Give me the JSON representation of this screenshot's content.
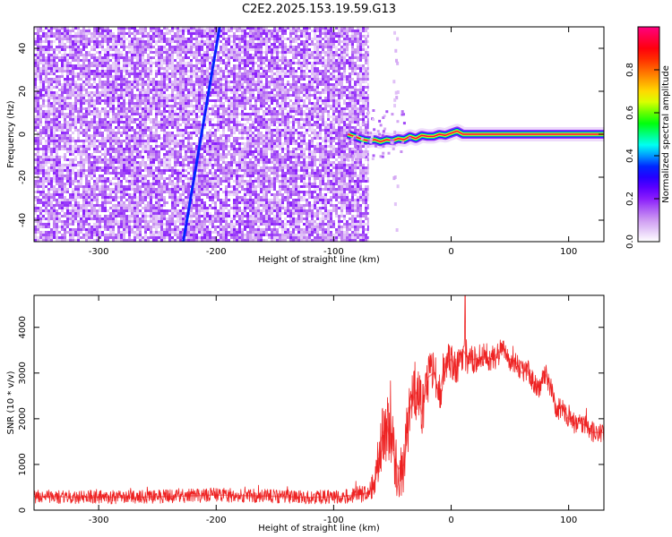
{
  "chart_data": [
    {
      "type": "heatmap",
      "title": "C2E2.2025.153.19.59.G13",
      "xlabel": "Height of straight line (km)",
      "ylabel": "Frequency (Hz)",
      "xlim": [
        -355,
        130
      ],
      "ylim": [
        -50,
        50
      ],
      "xticks": [
        -300,
        -200,
        -100,
        0,
        100
      ],
      "yticks": [
        -40,
        -20,
        0,
        20,
        40
      ],
      "colorbar": {
        "label": "Normalized spectral amplitude",
        "range": [
          0,
          1
        ],
        "ticks": [
          "0.0",
          "0.2",
          "0.4",
          "0.6",
          "0.8"
        ],
        "colormap": [
          "#ffffff",
          "#c890f0",
          "#7a00ff",
          "#0000ff",
          "#00ffff",
          "#00ff00",
          "#ffff00",
          "#ff8000",
          "#ff0000",
          "#ff0080"
        ]
      },
      "noise_region": {
        "x_range": [
          -355,
          -70
        ],
        "dominant_level": 0.15
      },
      "streak": {
        "x_at_f_min": -228,
        "x_at_f_max": -197,
        "level": 0.35,
        "f_range": [
          -50,
          50
        ]
      },
      "carrier_track": {
        "x": [
          -88,
          -80,
          -75,
          -70,
          -65,
          -60,
          -55,
          -50,
          -45,
          -40,
          -35,
          -30,
          -25,
          -20,
          -15,
          -10,
          -5,
          0,
          5,
          10,
          130
        ],
        "frequency": [
          0,
          -1.5,
          -2.5,
          -3,
          -2.5,
          -3.5,
          -2.5,
          -3,
          -2,
          -2.5,
          -1,
          -2,
          -0.5,
          -1,
          -1,
          0,
          -0.5,
          0.5,
          1.5,
          0,
          0
        ],
        "peak_level": 0.95
      }
    },
    {
      "type": "line",
      "title": "",
      "xlabel": "Height of straight line (km)",
      "ylabel": "SNR (10 * v/v)",
      "xlim": [
        -355,
        130
      ],
      "ylim": [
        0,
        4700
      ],
      "xticks": [
        -300,
        -200,
        -100,
        0,
        100
      ],
      "yticks": [
        0,
        1000,
        2000,
        3000,
        4000
      ],
      "series": [
        {
          "name": "SNR",
          "color": "#ee2222",
          "x": [
            -355,
            -320,
            -280,
            -240,
            -200,
            -160,
            -120,
            -100,
            -90,
            -80,
            -70,
            -65,
            -60,
            -55,
            -50,
            -45,
            -40,
            -35,
            -30,
            -25,
            -20,
            -15,
            -10,
            -5,
            0,
            5,
            10,
            15,
            20,
            25,
            30,
            35,
            40,
            45,
            50,
            55,
            60,
            65,
            70,
            75,
            80,
            85,
            90,
            95,
            100,
            105,
            110,
            115,
            120,
            125,
            130
          ],
          "y": [
            300,
            290,
            280,
            300,
            330,
            310,
            280,
            290,
            310,
            340,
            380,
            600,
            1500,
            1900,
            1300,
            900,
            1000,
            2200,
            2600,
            2100,
            2900,
            3000,
            2600,
            3200,
            3300,
            3100,
            3500,
            3300,
            3300,
            3350,
            3350,
            3300,
            3450,
            3500,
            3300,
            3250,
            3000,
            3050,
            2800,
            2700,
            3000,
            2700,
            2200,
            2250,
            2000,
            1900,
            1900,
            1850,
            1700,
            1700,
            1700
          ],
          "noise_amplitude": [
            150,
            150,
            150,
            150,
            160,
            150,
            150,
            150,
            160,
            180,
            200,
            350,
            700,
            800,
            800,
            700,
            700,
            800,
            700,
            700,
            600,
            550,
            500,
            450,
            400,
            400,
            400,
            350,
            300,
            300,
            300,
            300,
            280,
            260,
            250,
            250,
            250,
            250,
            250,
            250,
            250,
            250,
            250,
            230,
            220,
            220,
            220,
            220,
            220,
            220,
            220
          ],
          "peak": {
            "x": 12,
            "y": 4700
          }
        }
      ]
    }
  ]
}
